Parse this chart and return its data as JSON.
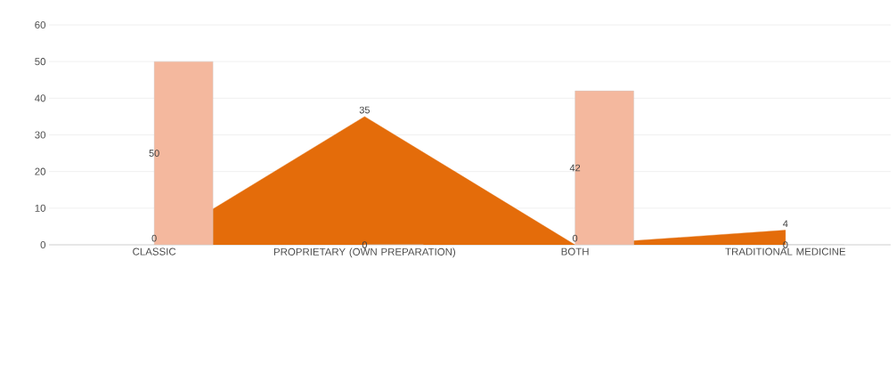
{
  "chart_data": {
    "type": "bar",
    "categories": [
      "CLASSIC",
      "PROPRIETARY (OWN PREPARATION)",
      "BOTH",
      "TRADITIONAL MEDICINE"
    ],
    "series": [
      {
        "type": "area",
        "color": "#e46c0a",
        "values": [
          0,
          35,
          0,
          4
        ]
      },
      {
        "color": "#f4b89e",
        "values": [
          50,
          0,
          42,
          0
        ]
      }
    ],
    "ylim": [
      0,
      60
    ],
    "yticks": [
      0,
      10,
      20,
      30,
      40,
      50,
      60
    ],
    "grid": "y",
    "data_labels": true
  }
}
